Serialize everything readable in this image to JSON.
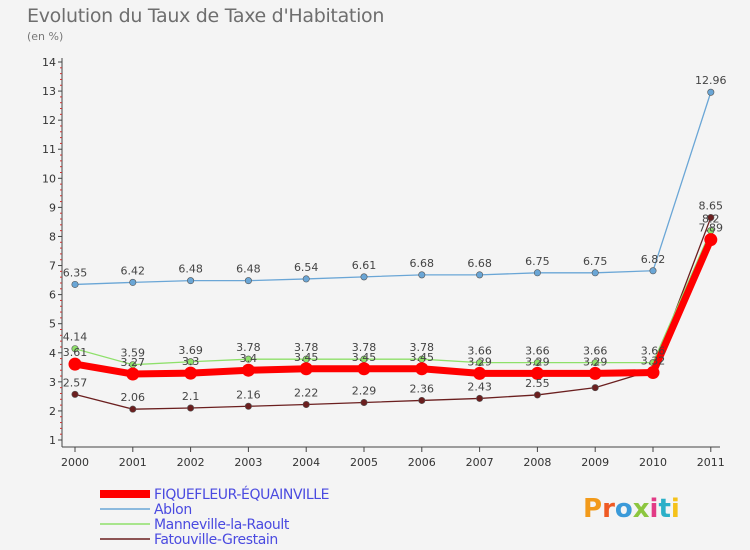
{
  "chart_data": {
    "type": "line",
    "title": "Evolution du Taux de Taxe d'Habitation",
    "subtitle": "(en %)",
    "xlabel": "",
    "ylabel": "",
    "ylim": [
      1,
      14
    ],
    "yticks": [
      "1",
      "2",
      "3",
      "4",
      "5",
      "6",
      "7",
      "8",
      "9",
      "10",
      "11",
      "12",
      "13",
      "14"
    ],
    "categories": [
      "2000",
      "2001",
      "2002",
      "2003",
      "2004",
      "2005",
      "2006",
      "2007",
      "2008",
      "2009",
      "2010",
      "2011"
    ],
    "series": [
      {
        "name": "Fatouville-Grestain",
        "color": "#6b1f1f",
        "values": [
          2.57,
          2.06,
          2.1,
          2.16,
          2.22,
          2.29,
          2.36,
          2.43,
          2.55,
          2.8,
          3.4,
          8.65
        ],
        "labels": [
          "2.57",
          "2.06",
          "2.1",
          "2.16",
          "2.22",
          "2.29",
          "2.36",
          "2.43",
          "2.55",
          "",
          "",
          "8.65"
        ]
      },
      {
        "name": "Manneville-la-Raoult",
        "color": "#8ee06a",
        "values": [
          4.14,
          3.59,
          3.69,
          3.78,
          3.78,
          3.78,
          3.78,
          3.66,
          3.66,
          3.66,
          3.66,
          8.2
        ],
        "labels": [
          "4.14",
          "3.59",
          "3.69",
          "3.78",
          "3.78",
          "3.78",
          "3.78",
          "3.66",
          "3.66",
          "3.66",
          "3.66",
          "8.2"
        ]
      },
      {
        "name": "Ablon",
        "color": "#6aa6d6",
        "values": [
          6.35,
          6.42,
          6.48,
          6.48,
          6.54,
          6.61,
          6.68,
          6.68,
          6.75,
          6.75,
          6.82,
          12.96
        ],
        "labels": [
          "6.35",
          "6.42",
          "6.48",
          "6.48",
          "6.54",
          "6.61",
          "6.68",
          "6.68",
          "6.75",
          "6.75",
          "6.82",
          "12.96"
        ]
      },
      {
        "name": "FIQUEFLEUR-ÉQUAINVILLE",
        "color": "#ff0000",
        "values": [
          3.61,
          3.27,
          3.3,
          3.4,
          3.45,
          3.45,
          3.45,
          3.29,
          3.29,
          3.29,
          3.32,
          7.89
        ],
        "labels": [
          "3.61",
          "3.27",
          "3.3",
          "3.4",
          "3.45",
          "3.45",
          "3.45",
          "3.29",
          "3.29",
          "3.29",
          "3.32",
          "7.89"
        ]
      }
    ],
    "legend": [
      "FIQUEFLEUR-ÉQUAINVILLE",
      "Ablon",
      "Manneville-la-Raoult",
      "Fatouville-Grestain"
    ],
    "legend_position": "bottom-left",
    "grid": false
  },
  "logo": {
    "text": "Proxiti"
  }
}
